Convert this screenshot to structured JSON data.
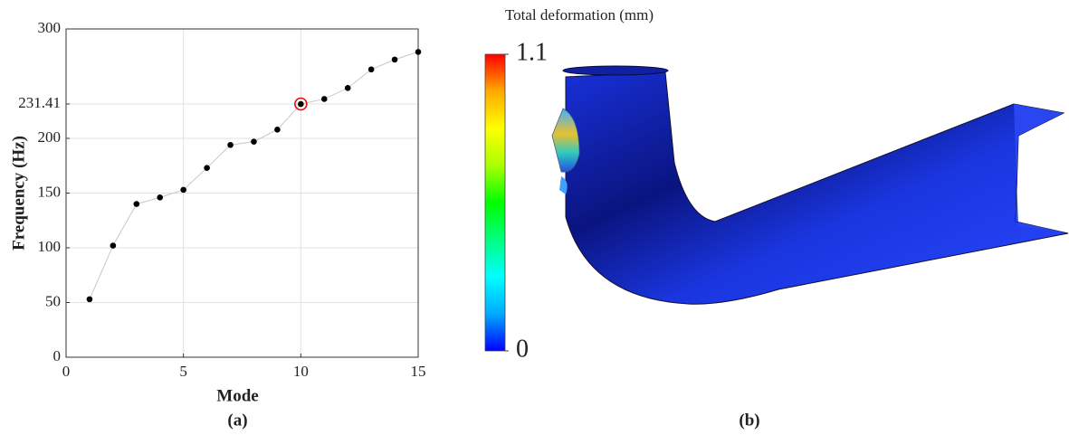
{
  "chart_data": [
    {
      "type": "scatter",
      "caption": "(a)",
      "xlabel": "Mode",
      "ylabel": "Frequency (Hz)",
      "x": [
        1,
        2,
        3,
        4,
        5,
        6,
        7,
        8,
        9,
        10,
        11,
        12,
        13,
        14,
        15
      ],
      "values": [
        53,
        102,
        140,
        146,
        153,
        173,
        194,
        197,
        208,
        231.41,
        236,
        246,
        263,
        272,
        279
      ],
      "color": "#000000",
      "line_color": "#c8c8c8",
      "highlight_index": 9,
      "highlight_color": "#e01010",
      "xlim": [
        0,
        15
      ],
      "xticks": [
        0,
        5,
        10,
        15
      ],
      "ylim": [
        0,
        300
      ],
      "yticks": [
        0,
        50,
        100,
        150,
        200,
        231.41,
        300
      ],
      "grid": true
    },
    {
      "type": "colorbar",
      "caption": "(b)",
      "title": "Total deformation (mm)",
      "clim": [
        0,
        1.1
      ],
      "cticks": [
        0,
        1.1
      ],
      "colors": [
        "#0000ff",
        "#00aaff",
        "#00ffff",
        "#00ff80",
        "#00ff00",
        "#aaff00",
        "#ffff00",
        "#ffaa00",
        "#ff0000"
      ]
    }
  ]
}
